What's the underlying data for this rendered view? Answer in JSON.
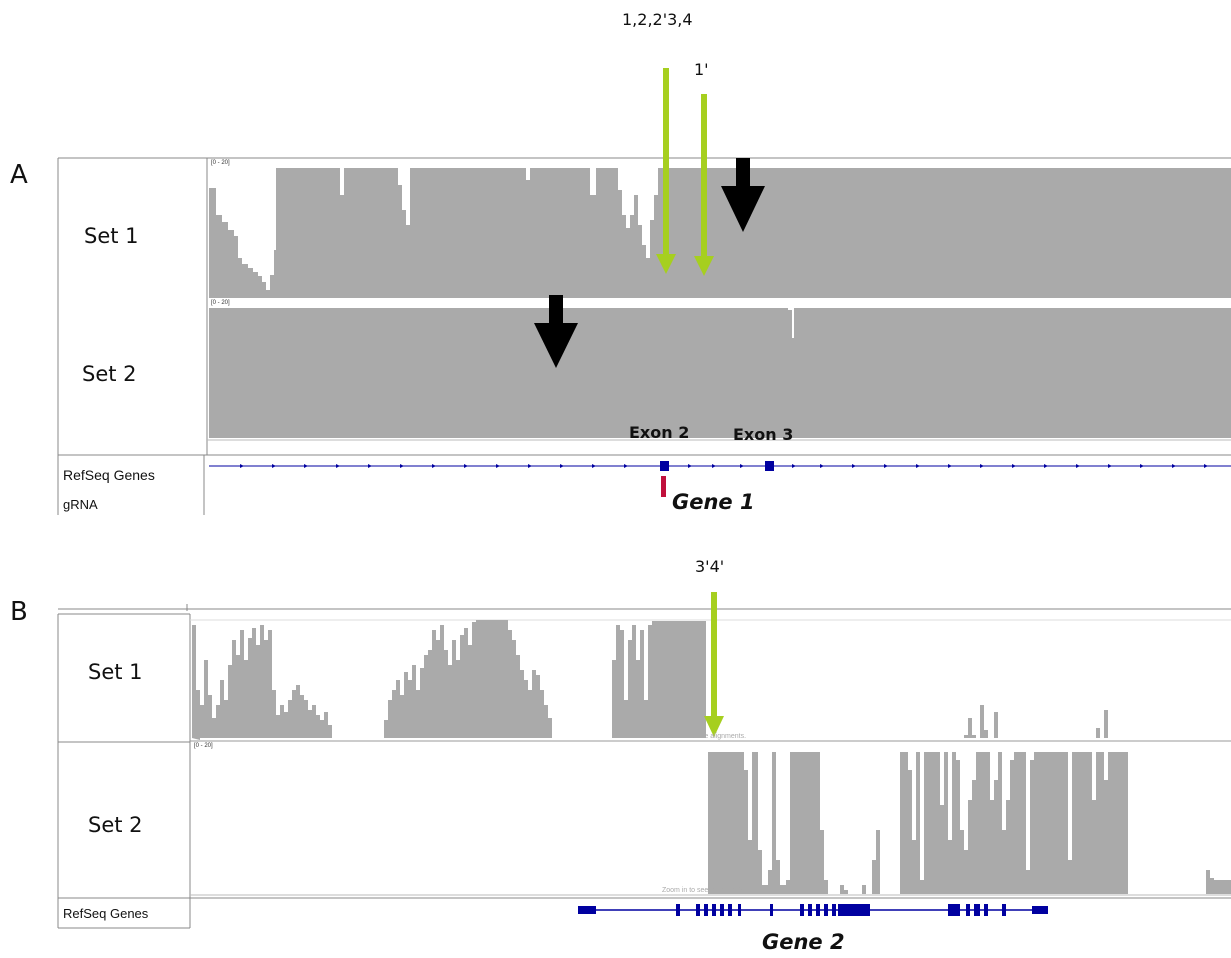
{
  "panel_a": {
    "letter": "A",
    "set1_label": "Set 1",
    "set2_label": "Set 2",
    "set1_scale": "[0 - 20]",
    "set2_scale": "[0 - 20]",
    "arrow_labels": [
      "1,2,2'3,4",
      "1'"
    ],
    "exon_labels": [
      "Exon 2",
      "Exon 3"
    ],
    "track_refseq": "RefSeq Genes",
    "track_grna": "gRNA",
    "gene_name": "Gene 1",
    "colors": {
      "coverage": "#aaaaaa",
      "arrow_green": "#a6cf1f",
      "arrow_black": "#000000",
      "gene": "#0000a0",
      "grna": "#c0103c"
    }
  },
  "panel_b": {
    "letter": "B",
    "set1_label": "Set 1",
    "set2_label": "Set 2",
    "set2_scale": "[0 - 20]",
    "arrow_label": "3'4'",
    "track_refseq": "RefSeq Genes",
    "gene_name": "Gene 2",
    "zoom_hint": "Zoom in to see alignments."
  }
}
